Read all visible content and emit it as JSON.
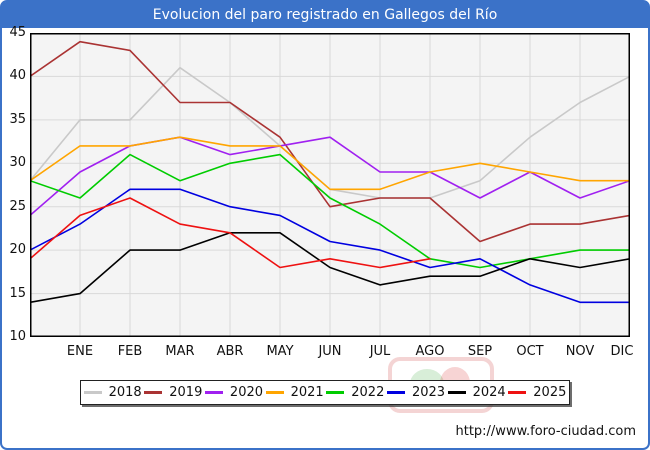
{
  "title": "Evolucion del paro registrado en Gallegos del Río",
  "footer_url": "http://www.foro-ciudad.com",
  "colors": {
    "frame_blue": "#3b72c8",
    "title_text": "#ffffff",
    "plot_bg": "#f4f4f4",
    "grid": "#d9d9d9",
    "axis_border": "#000000"
  },
  "chart_data": {
    "type": "line",
    "title": "Evolucion del paro registrado en Gallegos del Río",
    "xlabel": "",
    "ylabel": "",
    "x_axis": {
      "tick_labels": [
        "ENE",
        "FEB",
        "MAR",
        "ABR",
        "MAY",
        "JUN",
        "JUL",
        "AGO",
        "SEP",
        "OCT",
        "NOV",
        "DIC"
      ],
      "note": "each series has a lead-in point on the left axis equal to December of the previous year, followed by the 12 monthly values"
    },
    "y_axis": {
      "min": 10,
      "max": 45,
      "ticks": [
        45,
        40,
        35,
        30,
        25,
        20,
        15,
        10
      ]
    },
    "grid": true,
    "legend_position": "bottom",
    "series": [
      {
        "name": "2018",
        "color": "#c9c9c9",
        "values": [
          28,
          35,
          35,
          41,
          37,
          32,
          27,
          26,
          26,
          28,
          33,
          37,
          40
        ]
      },
      {
        "name": "2019",
        "color": "#aa3333",
        "values": [
          40,
          44,
          43,
          37,
          37,
          33,
          25,
          26,
          26,
          21,
          23,
          23,
          24
        ]
      },
      {
        "name": "2020",
        "color": "#a020f0",
        "values": [
          24,
          29,
          32,
          33,
          31,
          32,
          33,
          29,
          29,
          26,
          29,
          26,
          28
        ]
      },
      {
        "name": "2021",
        "color": "#ffa500",
        "values": [
          28,
          32,
          32,
          33,
          32,
          32,
          27,
          27,
          29,
          30,
          29,
          28,
          28
        ]
      },
      {
        "name": "2022",
        "color": "#00cc00",
        "values": [
          28,
          26,
          31,
          28,
          30,
          31,
          26,
          23,
          19,
          18,
          19,
          20,
          20
        ]
      },
      {
        "name": "2023",
        "color": "#0000e0",
        "values": [
          20,
          23,
          27,
          27,
          25,
          24,
          21,
          20,
          18,
          19,
          16,
          14,
          14
        ]
      },
      {
        "name": "2024",
        "color": "#000000",
        "values": [
          14,
          15,
          20,
          20,
          22,
          22,
          18,
          16,
          17,
          17,
          19,
          18,
          19
        ]
      },
      {
        "name": "2025",
        "color": "#ee1111",
        "values": [
          19,
          24,
          26,
          23,
          22,
          18,
          19,
          18,
          19
        ]
      }
    ]
  }
}
